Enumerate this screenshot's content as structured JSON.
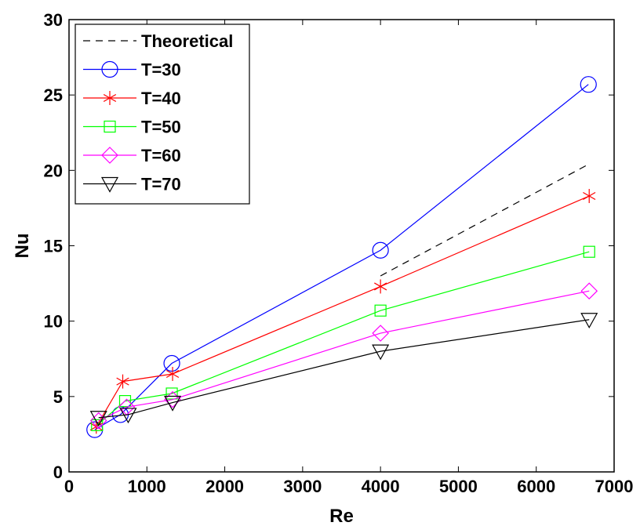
{
  "chart_data": {
    "type": "line",
    "xlabel": "Re",
    "ylabel": "Nu",
    "xlim": [
      0,
      7000
    ],
    "ylim": [
      0,
      30
    ],
    "xticks": [
      0,
      1000,
      2000,
      3000,
      4000,
      5000,
      6000,
      7000
    ],
    "yticks": [
      0,
      5,
      10,
      15,
      20,
      25,
      30
    ],
    "grid": false,
    "legend_position": "top-left",
    "series": [
      {
        "name": "Theoretical",
        "color": "#000000",
        "dash": true,
        "marker": "none",
        "x": [
          4000,
          6670
        ],
        "y": [
          13.0,
          20.4
        ]
      },
      {
        "name": "T=30",
        "color": "#0000ff",
        "dash": false,
        "marker": "circle",
        "x": [
          330,
          660,
          1320,
          4000,
          6670
        ],
        "y": [
          2.8,
          3.8,
          7.2,
          14.7,
          25.7
        ]
      },
      {
        "name": "T=40",
        "color": "#ff0000",
        "dash": false,
        "marker": "asterisk",
        "x": [
          350,
          690,
          1330,
          4000,
          6680
        ],
        "y": [
          3.0,
          6.0,
          6.5,
          12.3,
          18.3
        ]
      },
      {
        "name": "T=50",
        "color": "#00ff00",
        "dash": false,
        "marker": "square",
        "x": [
          360,
          720,
          1320,
          4000,
          6680
        ],
        "y": [
          3.1,
          4.7,
          5.2,
          10.7,
          14.6
        ]
      },
      {
        "name": "T=60",
        "color": "#ff00ff",
        "dash": false,
        "marker": "diamond",
        "x": [
          380,
          740,
          1330,
          4000,
          6680
        ],
        "y": [
          3.4,
          4.3,
          4.8,
          9.2,
          12.0
        ]
      },
      {
        "name": "T=70",
        "color": "#000000",
        "dash": false,
        "marker": "triangle-down",
        "x": [
          380,
          760,
          1330,
          4000,
          6680
        ],
        "y": [
          3.6,
          3.8,
          4.6,
          8.0,
          10.1
        ]
      }
    ]
  }
}
